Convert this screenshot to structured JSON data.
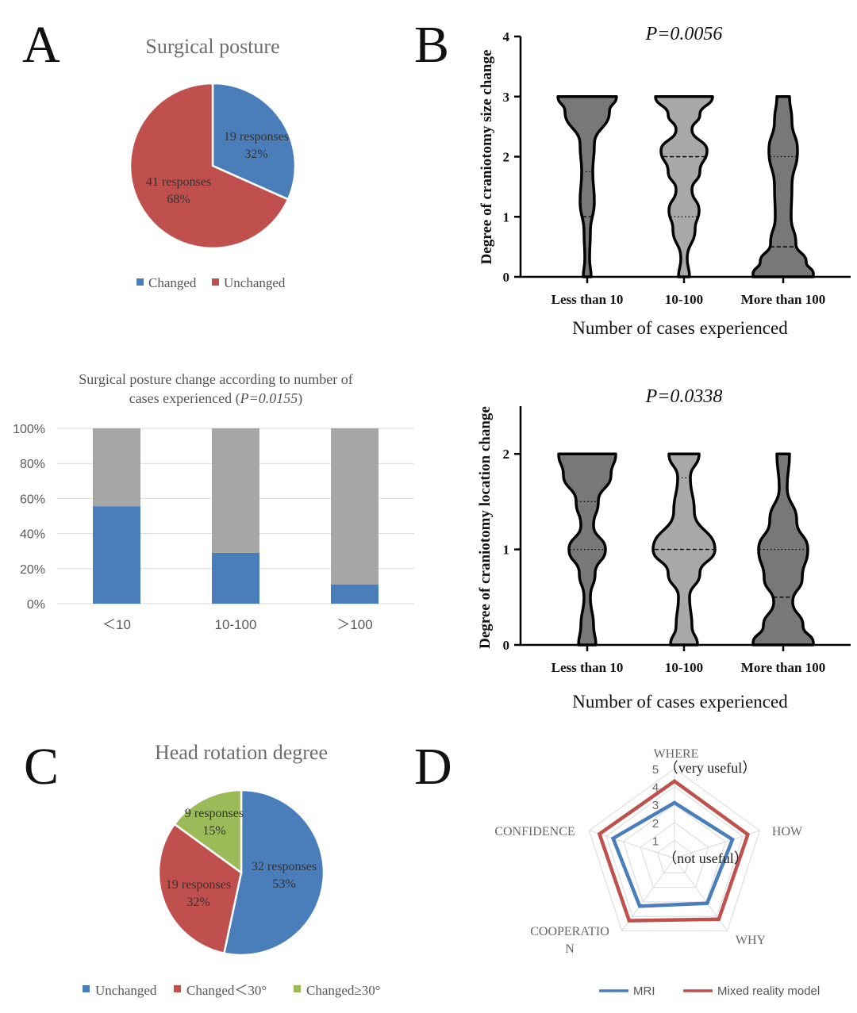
{
  "panel_letters": {
    "a": "A",
    "b": "B",
    "c": "C",
    "d": "D"
  },
  "chart_data": [
    {
      "id": "A-pie",
      "type": "pie",
      "title": "Surgical  posture",
      "slices": [
        {
          "name": "Changed",
          "value": 19,
          "label": "19 responses",
          "pct_label": "32%",
          "color": "#4a7ebb"
        },
        {
          "name": "Unchanged",
          "value": 41,
          "label": "41 responses",
          "pct_label": "68%",
          "color": "#c0504d"
        }
      ],
      "legend": [
        "Changed",
        "Unchanged"
      ],
      "legend_position": "bottom"
    },
    {
      "id": "A-bar",
      "type": "bar",
      "stacked": true,
      "title_line1": "Surgical  posture change according to number of",
      "title_line2_prefix": "cases experienced (",
      "title_line2_p": "P=0.0155",
      "title_line2_suffix": ")",
      "categories": [
        "＜10",
        "10-100",
        "＞100"
      ],
      "series": [
        {
          "values": [
            55.6,
            29,
            11
          ],
          "color": "#4a7ebb"
        },
        {
          "values": [
            44.4,
            71,
            89
          ],
          "color": "#a6a6a6"
        }
      ],
      "yticks": [
        "0%",
        "20%",
        "40%",
        "60%",
        "80%",
        "100%"
      ],
      "ylim": [
        0,
        100
      ],
      "grid": true
    },
    {
      "id": "B-violin-size",
      "type": "violin",
      "annotation": "P=0.0056",
      "xlabel": "Number of cases experienced",
      "ylabel": "Degree of craniotomy size change",
      "categories": [
        "Less than 10",
        "10-100",
        "More than 100"
      ],
      "ylim": [
        0,
        4
      ],
      "yticks": [
        "0",
        "1",
        "2",
        "3",
        "4"
      ],
      "medians": [
        1.75,
        2,
        2
      ],
      "quartiles_lower": [
        1,
        1,
        0.5
      ],
      "colors": [
        "#787878",
        "#a8a8a8",
        "#787878"
      ]
    },
    {
      "id": "B-violin-location",
      "type": "violin",
      "annotation": "P=0.0338",
      "xlabel": "Number of cases experienced",
      "ylabel": "Degree of craniotomy location change",
      "categories": [
        "Less than 10",
        "10-100",
        "More than 100"
      ],
      "ylim": [
        0,
        2.5
      ],
      "yticks": [
        "0",
        "1",
        "2"
      ],
      "medians": [
        1,
        1,
        1
      ],
      "quartiles_upper": [
        1.5,
        1,
        1
      ],
      "quartiles_lower": [
        1,
        1,
        0.5
      ],
      "colors": [
        "#787878",
        "#a8a8a8",
        "#787878"
      ]
    },
    {
      "id": "C-pie",
      "type": "pie",
      "title": "Head rotation degree",
      "slices": [
        {
          "name": "Unchanged",
          "value": 32,
          "label": "32 responses",
          "pct_label": "53%",
          "color": "#4a7ebb"
        },
        {
          "name": "Changed＜30°",
          "value": 19,
          "label": "19 responses",
          "pct_label": "32%",
          "color": "#c0504d"
        },
        {
          "name": "Changed≥30°",
          "value": 9,
          "label": "9 responses",
          "pct_label": "15%",
          "color": "#9bbb59"
        }
      ],
      "legend": [
        "Unchanged",
        "Changed＜30°",
        "Changed≥30°"
      ],
      "legend_position": "bottom"
    },
    {
      "id": "D-radar",
      "type": "radar",
      "axes": [
        "WHERE",
        "HOW",
        "WHY",
        "COOPERATION",
        "CONFIDENCE"
      ],
      "axis_labels_display": [
        "WHERE",
        "HOW",
        "WHY",
        "COOPERATIO",
        "N",
        "CONFIDENCE"
      ],
      "rlim": [
        0,
        5
      ],
      "rticks": [
        "1",
        "2",
        "3",
        "4",
        "5"
      ],
      "top_note": "（very useful）",
      "bottom_note": "（not useful）",
      "series": [
        {
          "name": "MRI",
          "values": [
            3.1,
            3.4,
            3.1,
            3.3,
            3.6
          ],
          "color": "#4a7ebb"
        },
        {
          "name": "Mixed reality model",
          "values": [
            4.3,
            4.3,
            4.2,
            4.3,
            4.4
          ],
          "color": "#c0504d"
        }
      ],
      "legend_position": "bottom-right"
    }
  ]
}
